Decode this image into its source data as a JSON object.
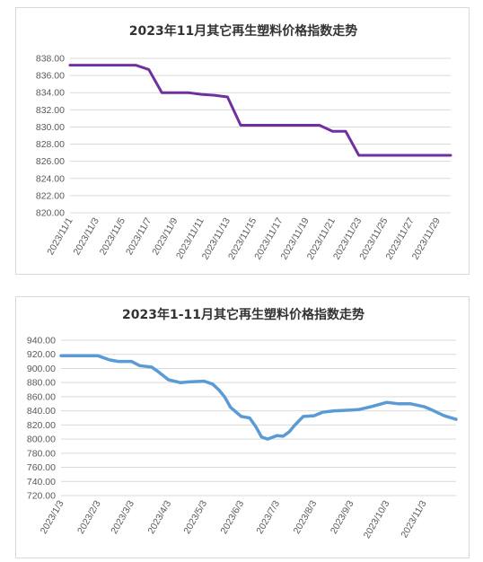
{
  "chart_data": [
    {
      "type": "line",
      "title": "2023年11月其它再生塑料价格指数走势",
      "xlabel": "",
      "ylabel": "",
      "ylim": [
        820,
        838
      ],
      "grid": true,
      "color": "#7030a0",
      "yticks": [
        "838.00",
        "836.00",
        "834.00",
        "832.00",
        "830.00",
        "828.00",
        "826.00",
        "824.00",
        "822.00",
        "820.00"
      ],
      "xticks": [
        "2023/11/1",
        "2023/11/3",
        "2023/11/5",
        "2023/11/7",
        "2023/11/9",
        "2023/11/11",
        "2023/11/13",
        "2023/11/15",
        "2023/11/17",
        "2023/11/19",
        "2023/11/21",
        "2023/11/23",
        "2023/11/25",
        "2023/11/27",
        "2023/11/29"
      ],
      "x": [
        "2023/11/1",
        "2023/11/2",
        "2023/11/3",
        "2023/11/4",
        "2023/11/5",
        "2023/11/6",
        "2023/11/7",
        "2023/11/8",
        "2023/11/9",
        "2023/11/10",
        "2023/11/11",
        "2023/11/12",
        "2023/11/13",
        "2023/11/14",
        "2023/11/15",
        "2023/11/16",
        "2023/11/17",
        "2023/11/18",
        "2023/11/19",
        "2023/11/20",
        "2023/11/21",
        "2023/11/22",
        "2023/11/23",
        "2023/11/24",
        "2023/11/25",
        "2023/11/26",
        "2023/11/27",
        "2023/11/28",
        "2023/11/29",
        "2023/11/30"
      ],
      "values": [
        837.2,
        837.2,
        837.2,
        837.2,
        837.2,
        837.2,
        836.7,
        834.0,
        834.0,
        834.0,
        833.8,
        833.7,
        833.5,
        830.2,
        830.2,
        830.2,
        830.2,
        830.2,
        830.2,
        830.2,
        829.5,
        829.5,
        826.7,
        826.7,
        826.7,
        826.7,
        826.7,
        826.7,
        826.7,
        826.7
      ]
    },
    {
      "type": "line",
      "title": "2023年1-11月其它再生塑料价格指数走势",
      "xlabel": "",
      "ylabel": "",
      "ylim": [
        720,
        940
      ],
      "grid": true,
      "color": "#5b9bd5",
      "yticks": [
        "940.00",
        "920.00",
        "900.00",
        "880.00",
        "860.00",
        "840.00",
        "820.00",
        "800.00",
        "780.00",
        "760.00",
        "740.00",
        "720.00"
      ],
      "xticks": [
        "2023/1/3",
        "2023/2/3",
        "2023/3/3",
        "2023/4/3",
        "2023/5/3",
        "2023/6/3",
        "2023/7/3",
        "2023/8/3",
        "2023/9/3",
        "2023/10/3",
        "2023/11/3"
      ],
      "x": [
        "2023/1/3",
        "2023/1/13",
        "2023/1/23",
        "2023/2/3",
        "2023/2/8",
        "2023/2/13",
        "2023/2/20",
        "2023/3/3",
        "2023/3/10",
        "2023/3/20",
        "2023/3/25",
        "2023/4/3",
        "2023/4/13",
        "2023/4/20",
        "2023/5/3",
        "2023/5/10",
        "2023/5/15",
        "2023/5/20",
        "2023/5/25",
        "2023/6/3",
        "2023/6/10",
        "2023/6/15",
        "2023/6/20",
        "2023/6/25",
        "2023/7/3",
        "2023/7/8",
        "2023/7/13",
        "2023/7/18",
        "2023/7/25",
        "2023/8/3",
        "2023/8/10",
        "2023/8/20",
        "2023/9/3",
        "2023/9/10",
        "2023/9/20",
        "2023/10/3",
        "2023/10/13",
        "2023/10/23",
        "2023/11/3",
        "2023/11/10",
        "2023/11/20",
        "2023/11/30"
      ],
      "values": [
        918,
        918,
        918,
        918,
        915,
        912,
        910,
        910,
        904,
        902,
        896,
        884,
        880,
        881,
        882,
        878,
        870,
        860,
        845,
        832,
        830,
        818,
        803,
        800,
        805,
        804,
        810,
        820,
        832,
        833,
        838,
        840,
        841,
        842,
        846,
        852,
        850,
        850,
        846,
        841,
        833,
        828
      ]
    }
  ]
}
